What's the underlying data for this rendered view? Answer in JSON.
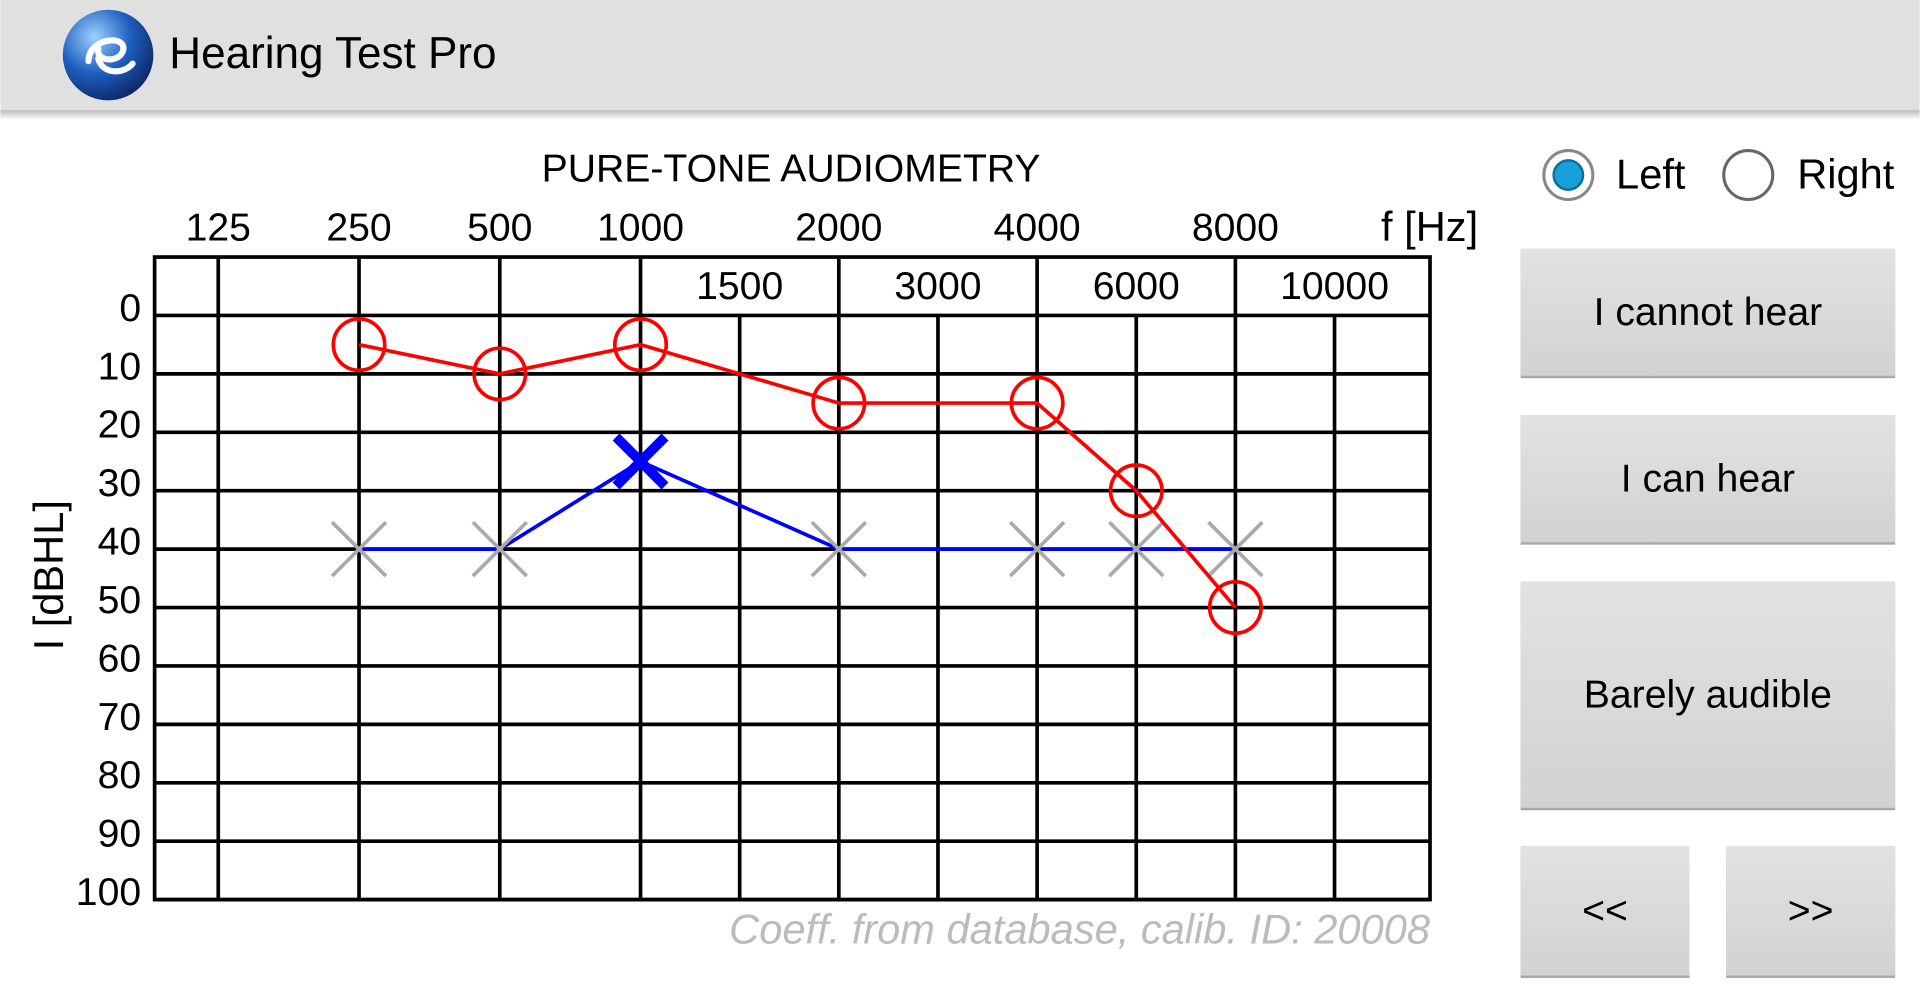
{
  "app_bar": {
    "title": "Hearing Test Pro"
  },
  "chart_data": {
    "type": "line",
    "title": "PURE-TONE AUDIOMETRY",
    "xlabel": "f [Hz]",
    "ylabel": "I [dBHL]",
    "x": [
      250,
      500,
      1000,
      2000,
      4000,
      6000,
      8000
    ],
    "xticks": [
      125,
      250,
      500,
      1000,
      1500,
      2000,
      3000,
      4000,
      6000,
      8000,
      10000
    ],
    "ylim": [
      100,
      -10
    ],
    "yticks": [
      0,
      10,
      20,
      30,
      40,
      50,
      60,
      70,
      80,
      90,
      100
    ],
    "grid": true,
    "series": [
      {
        "color": "#ff0000",
        "marker": "circle",
        "values": [
          5,
          10,
          5,
          15,
          15,
          30,
          50
        ]
      },
      {
        "color": "#0000ff",
        "marker": "x",
        "marker_color": "#aaaaaa",
        "highlight": 2,
        "values": [
          40,
          40,
          25,
          40,
          40,
          40,
          40
        ]
      }
    ],
    "annotation": "Coeff. from database, calib. ID: 20008"
  },
  "controls": {
    "ear": {
      "options": [
        "Left",
        "Right"
      ],
      "selected": 0
    },
    "buttons": [
      "I cannot hear",
      "I can hear",
      "Barely audible",
      "<<",
      ">>"
    ]
  }
}
